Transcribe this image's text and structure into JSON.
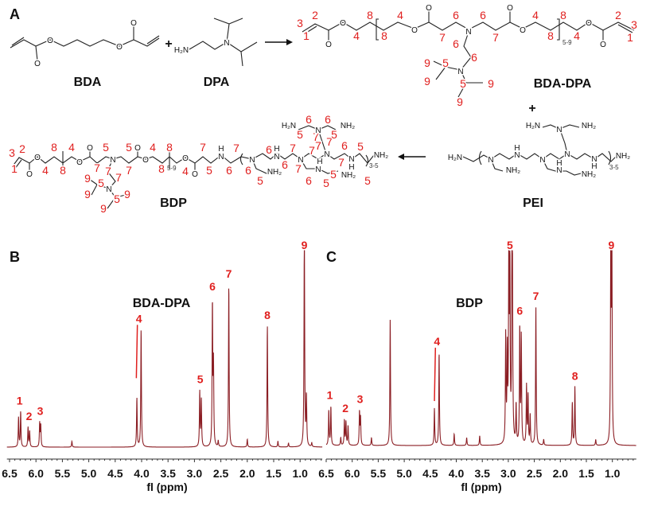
{
  "panel_a": {
    "letter": "A",
    "plus_1": "+",
    "plus_2": "+",
    "bda": {
      "name": "BDA",
      "atoms": [
        "O",
        "O",
        "O",
        "O"
      ]
    },
    "dpa": {
      "name": "DPA",
      "atoms": [
        "H₂N",
        "N"
      ]
    },
    "bda_dpa": {
      "name": "BDA-DPA",
      "repeat": "5-9",
      "numbers": [
        "3",
        "2",
        "1",
        "4",
        "8",
        "8",
        "4",
        "6",
        "7",
        "6",
        "7",
        "4",
        "8",
        "8",
        "4",
        "2",
        "3",
        "1",
        "6",
        "6",
        "9",
        "5",
        "9",
        "5",
        "9",
        "9"
      ],
      "atoms": [
        "O",
        "O",
        "O",
        "O",
        "N",
        "O",
        "O",
        "O",
        "O",
        "N"
      ]
    },
    "bdp": {
      "name": "BDP",
      "repeat": "5-9",
      "repeat_2": "3-5",
      "numbers": [
        "3",
        "2",
        "1",
        "8",
        "4",
        "4",
        "8",
        "5",
        "7",
        "7",
        "7",
        "5",
        "7",
        "4",
        "8",
        "8",
        "4",
        "7",
        "5",
        "6",
        "7",
        "6",
        "5",
        "6",
        "6",
        "7",
        "7",
        "6",
        "5",
        "5",
        "7",
        "7",
        "7",
        "7",
        "7",
        "6",
        "5",
        "5",
        "6",
        "6",
        "5",
        "5",
        "9",
        "5",
        "9",
        "5",
        "9",
        "9"
      ],
      "atoms": [
        "O",
        "O",
        "O",
        "O",
        "N",
        "O",
        "O",
        "O",
        "O",
        "H",
        "N",
        "N",
        "NH₂",
        "H",
        "N",
        "N",
        "H",
        "N",
        "NH₂",
        "N",
        "H₂N",
        "NH₂",
        "N",
        "N",
        "H",
        "NH₂",
        "N"
      ]
    },
    "pei": {
      "name": "PEI",
      "repeat": "3-5",
      "atoms": [
        "H₂N",
        "N",
        "NH₂",
        "H₂N",
        "N",
        "NH₂",
        "H",
        "N",
        "N",
        "H",
        "N",
        "N",
        "N",
        "H",
        "NH₂",
        "NH₂"
      ]
    }
  },
  "chart_data": [
    {
      "panel": "B",
      "type": "line",
      "title": "BDA-DPA",
      "xlabel": "fl (ppm)",
      "xlim": [
        6.55,
        0.58
      ],
      "x_reversed": true,
      "xticks": [
        "6.5",
        "6.0",
        "5.5",
        "5.0",
        "4.5",
        "4.0",
        "3.5",
        "3.0",
        "2.5",
        "2.0",
        "1.5",
        "1.0"
      ],
      "y_units": "relative intensity",
      "color": "#8b1e24",
      "peaks": [
        {
          "ppm": 6.33,
          "intensity": 0.15
        },
        {
          "ppm": 6.29,
          "intensity": 0.18
        },
        {
          "ppm": 6.15,
          "intensity": 0.1
        },
        {
          "ppm": 6.12,
          "intensity": 0.08
        },
        {
          "ppm": 5.93,
          "intensity": 0.12
        },
        {
          "ppm": 5.91,
          "intensity": 0.11
        },
        {
          "ppm": 5.32,
          "intensity": 0.03
        },
        {
          "ppm": 4.09,
          "intensity": 0.25
        },
        {
          "ppm": 4.01,
          "intensity": 0.6
        },
        {
          "ppm": 2.9,
          "intensity": 0.28
        },
        {
          "ppm": 2.87,
          "intensity": 0.24
        },
        {
          "ppm": 2.66,
          "intensity": 0.72
        },
        {
          "ppm": 2.64,
          "intensity": 0.4
        },
        {
          "ppm": 2.55,
          "intensity": 0.03
        },
        {
          "ppm": 2.35,
          "intensity": 0.83
        },
        {
          "ppm": 2.0,
          "intensity": 0.04
        },
        {
          "ppm": 1.62,
          "intensity": 0.62
        },
        {
          "ppm": 1.42,
          "intensity": 0.03
        },
        {
          "ppm": 1.22,
          "intensity": 0.02
        },
        {
          "ppm": 0.92,
          "intensity": 1.15
        },
        {
          "ppm": 0.88,
          "intensity": 0.25
        },
        {
          "ppm": 0.78,
          "intensity": 0.02
        }
      ],
      "annotations": [
        {
          "label": "1",
          "ppm": 6.31
        },
        {
          "label": "2",
          "ppm": 6.13
        },
        {
          "label": "3",
          "ppm": 5.92
        },
        {
          "label": "4",
          "ppm": 4.05
        },
        {
          "label": "5",
          "ppm": 2.89
        },
        {
          "label": "6",
          "ppm": 2.66
        },
        {
          "label": "7",
          "ppm": 2.35
        },
        {
          "label": "8",
          "ppm": 1.62
        },
        {
          "label": "9",
          "ppm": 0.92
        }
      ]
    },
    {
      "panel": "C",
      "type": "line",
      "title": "BDP",
      "xlabel": "fl (ppm)",
      "xlim": [
        6.5,
        0.54
      ],
      "x_reversed": true,
      "xticks": [
        "6.5",
        "6.0",
        "5.5",
        "5.0",
        "4.5",
        "4.0",
        "3.5",
        "3.0",
        "2.5",
        "2.0",
        "1.5",
        "1.0"
      ],
      "y_units": "relative intensity",
      "color": "#8b1e24",
      "peaks": [
        {
          "ppm": 6.45,
          "intensity": 0.18
        },
        {
          "ppm": 6.41,
          "intensity": 0.2
        },
        {
          "ppm": 6.22,
          "intensity": 0.04
        },
        {
          "ppm": 6.15,
          "intensity": 0.13
        },
        {
          "ppm": 6.12,
          "intensity": 0.12
        },
        {
          "ppm": 6.08,
          "intensity": 0.1
        },
        {
          "ppm": 5.86,
          "intensity": 0.17
        },
        {
          "ppm": 5.84,
          "intensity": 0.14
        },
        {
          "ppm": 5.63,
          "intensity": 0.04
        },
        {
          "ppm": 5.27,
          "intensity": 0.65
        },
        {
          "ppm": 4.42,
          "intensity": 0.19
        },
        {
          "ppm": 4.33,
          "intensity": 0.48
        },
        {
          "ppm": 4.04,
          "intensity": 0.06
        },
        {
          "ppm": 3.8,
          "intensity": 0.04
        },
        {
          "ppm": 3.55,
          "intensity": 0.05
        },
        {
          "ppm": 3.05,
          "intensity": 0.55
        },
        {
          "ppm": 3.02,
          "intensity": 0.45
        },
        {
          "ppm": 2.99,
          "intensity": 1.0
        },
        {
          "ppm": 2.97,
          "intensity": 0.9
        },
        {
          "ppm": 2.93,
          "intensity": 0.92
        },
        {
          "ppm": 2.92,
          "intensity": 0.7
        },
        {
          "ppm": 2.85,
          "intensity": 0.2
        },
        {
          "ppm": 2.78,
          "intensity": 0.6
        },
        {
          "ppm": 2.75,
          "intensity": 0.55
        },
        {
          "ppm": 2.65,
          "intensity": 0.3
        },
        {
          "ppm": 2.62,
          "intensity": 0.25
        },
        {
          "ppm": 2.58,
          "intensity": 0.15
        },
        {
          "ppm": 2.47,
          "intensity": 0.71
        },
        {
          "ppm": 2.32,
          "intensity": 0.03
        },
        {
          "ppm": 1.77,
          "intensity": 0.22
        },
        {
          "ppm": 1.72,
          "intensity": 0.3
        },
        {
          "ppm": 1.32,
          "intensity": 0.03
        },
        {
          "ppm": 1.03,
          "intensity": 1.1
        },
        {
          "ppm": 1.01,
          "intensity": 1.05
        }
      ],
      "annotations": [
        {
          "label": "1",
          "ppm": 6.43
        },
        {
          "label": "2",
          "ppm": 6.13
        },
        {
          "label": "3",
          "ppm": 5.85
        },
        {
          "label": "4",
          "ppm": 4.37
        },
        {
          "label": "5",
          "ppm": 2.97
        },
        {
          "label": "6",
          "ppm": 2.78
        },
        {
          "label": "7",
          "ppm": 2.47
        },
        {
          "label": "8",
          "ppm": 1.72
        },
        {
          "label": "9",
          "ppm": 1.02
        }
      ]
    }
  ]
}
